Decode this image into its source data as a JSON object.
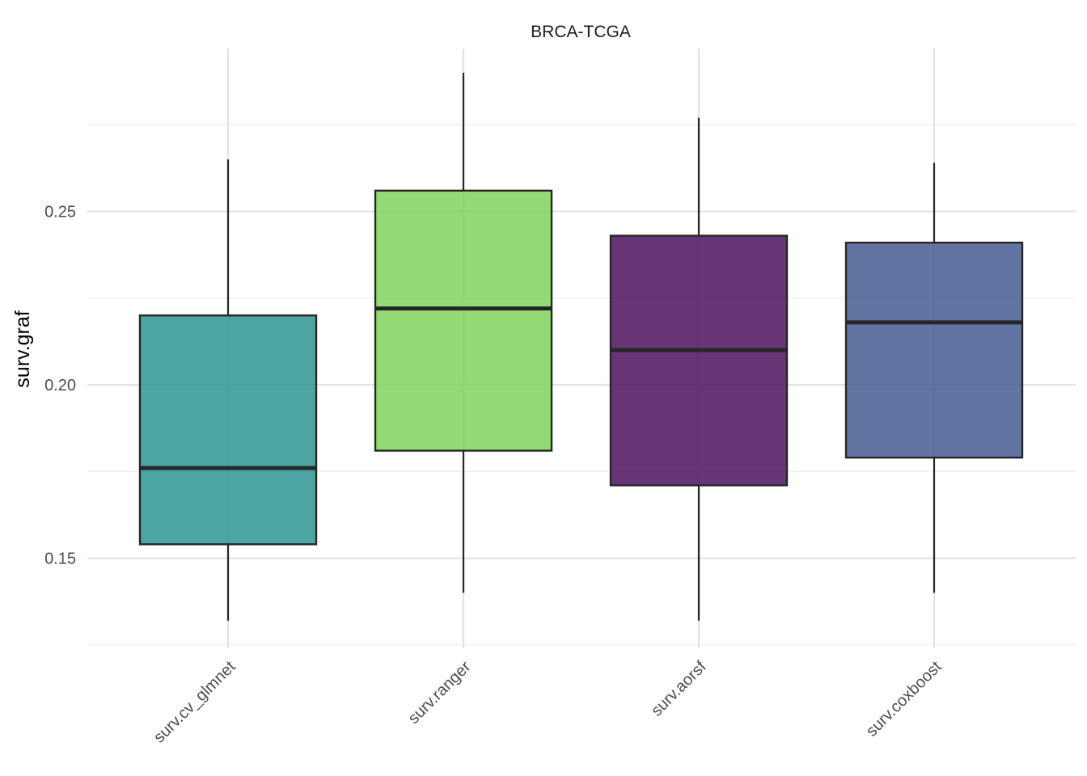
{
  "chart_data": {
    "type": "box",
    "title": "BRCA-TCGA",
    "xlabel": "",
    "ylabel": "surv.graf",
    "ylim": [
      0.124,
      0.297
    ],
    "y_ticks": [
      0.15,
      0.2,
      0.25
    ],
    "y_tick_labels": [
      "0.15",
      "0.20",
      "0.25"
    ],
    "grid": true,
    "categories": [
      "surv.cv_glmnet",
      "surv.ranger",
      "surv.aorsf",
      "surv.coxboost"
    ],
    "boxes": [
      {
        "category": "surv.cv_glmnet",
        "whisker_low": 0.132,
        "q1": 0.154,
        "median": 0.176,
        "q3": 0.22,
        "whisker_high": 0.265,
        "color": "#21908C"
      },
      {
        "category": "surv.ranger",
        "whisker_low": 0.14,
        "q1": 0.181,
        "median": 0.222,
        "q3": 0.256,
        "whisker_high": 0.29,
        "color": "#7AD151"
      },
      {
        "category": "surv.aorsf",
        "whisker_low": 0.132,
        "q1": 0.171,
        "median": 0.21,
        "q3": 0.243,
        "whisker_high": 0.277,
        "color": "#440154"
      },
      {
        "category": "surv.coxboost",
        "whisker_low": 0.14,
        "q1": 0.179,
        "median": 0.218,
        "q3": 0.241,
        "whisker_high": 0.264,
        "color": "#3B528B"
      }
    ]
  }
}
